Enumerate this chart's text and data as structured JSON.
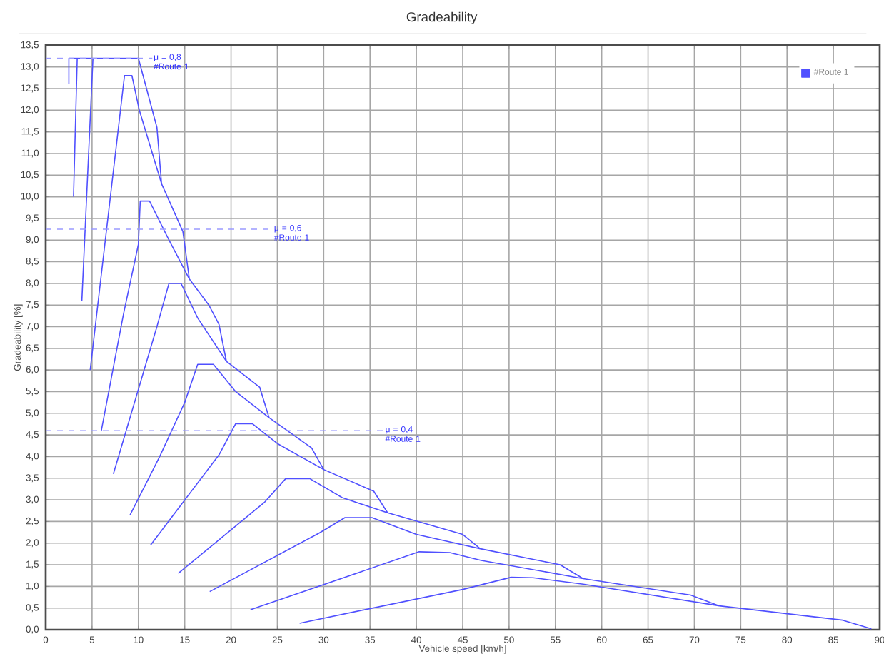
{
  "chart_data": {
    "type": "line",
    "title": "Gradeability",
    "xlabel": "Vehicle speed [km/h]",
    "ylabel": "Gradeability [%]",
    "xlim": [
      0,
      90
    ],
    "ylim": [
      0,
      13.5
    ],
    "xticks": [
      0,
      5,
      10,
      15,
      20,
      25,
      30,
      35,
      40,
      45,
      50,
      55,
      60,
      65,
      70,
      75,
      80,
      85,
      90
    ],
    "yticks": [
      {
        "value": 0,
        "label": "0,0"
      },
      {
        "value": 0.5,
        "label": "0,5"
      },
      {
        "value": 1,
        "label": "1,0"
      },
      {
        "value": 1.5,
        "label": "1,5"
      },
      {
        "value": 2,
        "label": "2,0"
      },
      {
        "value": 2.5,
        "label": "2,5"
      },
      {
        "value": 3,
        "label": "3,0"
      },
      {
        "value": 3.5,
        "label": "3,5"
      },
      {
        "value": 4,
        "label": "4,0"
      },
      {
        "value": 4.5,
        "label": "4,5"
      },
      {
        "value": 5,
        "label": "5,0"
      },
      {
        "value": 5.5,
        "label": "5,5"
      },
      {
        "value": 6,
        "label": "6,0"
      },
      {
        "value": 6.5,
        "label": "6,5"
      },
      {
        "value": 7,
        "label": "7,0"
      },
      {
        "value": 7.5,
        "label": "7,5"
      },
      {
        "value": 8,
        "label": "8,0"
      },
      {
        "value": 8.5,
        "label": "8,5"
      },
      {
        "value": 9,
        "label": "9,0"
      },
      {
        "value": 9.5,
        "label": "9,5"
      },
      {
        "value": 10,
        "label": "10,0"
      },
      {
        "value": 10.5,
        "label": "10,5"
      },
      {
        "value": 11,
        "label": "11,0"
      },
      {
        "value": 11.5,
        "label": "11,5"
      },
      {
        "value": 12,
        "label": "12,0"
      },
      {
        "value": 12.5,
        "label": "12,5"
      },
      {
        "value": 13,
        "label": "13,0"
      },
      {
        "value": 13.5,
        "label": "13,5"
      }
    ],
    "grid": true,
    "legend": "top right",
    "marker": "none",
    "line_style": "solid",
    "series": [
      {
        "name": "#Route 1",
        "color": "#5050ff",
        "x": [
          2.5,
          2.5,
          10,
          null,
          3.0,
          3.4,
          10,
          null,
          3.9,
          5.1,
          10,
          12.0,
          12.5,
          null,
          4.8,
          8.5,
          9.3,
          10.1,
          12.5,
          14.8,
          15.5,
          null,
          6.0,
          8.4,
          10.0,
          10.2,
          11.2,
          13.3,
          15.5,
          17.6,
          18.7,
          19.5,
          null,
          7.3,
          12.0,
          13.3,
          14.6,
          16.4,
          19.5,
          23.1,
          24.1,
          null,
          9.1,
          12.3,
          15.0,
          16.4,
          18.1,
          20.5,
          24.1,
          28.7,
          30.0,
          null,
          11.3,
          18.7,
          20.5,
          22.3,
          25.0,
          30.0,
          35.4,
          36.9,
          null,
          14.3,
          23.6,
          25.9,
          28.5,
          32.0,
          36.9,
          45.0,
          46.9,
          null,
          17.7,
          29.5,
          32.3,
          35.2,
          40.0,
          46.9,
          55.5,
          58.0,
          null,
          22.1,
          40.3,
          43.6,
          47.0,
          58.0,
          69.6,
          72.7,
          null,
          27.4,
          45.0,
          50.2,
          52.6,
          58.0,
          72.7,
          86.0,
          89.1
        ],
        "values": [
          12.6,
          13.2,
          13.2,
          null,
          10.0,
          13.2,
          13.2,
          null,
          7.6,
          13.2,
          13.2,
          11.6,
          10.3,
          null,
          6.0,
          12.8,
          12.8,
          12.0,
          10.3,
          9.2,
          8.1,
          null,
          4.6,
          7.3,
          8.9,
          9.9,
          9.9,
          9.0,
          8.1,
          7.5,
          7.05,
          6.2,
          null,
          3.6,
          7.0,
          8.0,
          8.0,
          7.2,
          6.2,
          5.6,
          4.9,
          null,
          2.65,
          4.0,
          5.25,
          6.13,
          6.13,
          5.5,
          4.9,
          4.2,
          3.7,
          null,
          1.95,
          4.04,
          4.76,
          4.76,
          4.3,
          3.7,
          3.2,
          2.7,
          null,
          1.3,
          2.94,
          3.49,
          3.49,
          3.05,
          2.7,
          2.2,
          1.87,
          null,
          0.88,
          2.23,
          2.59,
          2.59,
          2.2,
          1.87,
          1.5,
          1.18,
          null,
          0.46,
          1.8,
          1.78,
          1.6,
          1.18,
          0.8,
          0.55,
          null,
          0.15,
          0.93,
          1.21,
          1.2,
          1.05,
          0.55,
          0.22,
          0.02
        ]
      }
    ],
    "ref_lines": [
      {
        "axis": "y",
        "value": 13.2,
        "color": "#9a9aff",
        "line_style": "dashed"
      },
      {
        "axis": "y",
        "value": 9.25,
        "color": "#9a9aff",
        "line_style": "dashed"
      },
      {
        "axis": "y",
        "value": 4.6,
        "color": "#9a9aff",
        "line_style": "dashed"
      }
    ],
    "annotations": [
      {
        "text": "μ = 0,8 #Route 1",
        "x": 11.5,
        "y": 13.2
      },
      {
        "text": "μ = 0,6 #Route 1",
        "x": 24.5,
        "y": 9.25
      },
      {
        "text": "μ = 0,4 #Route 1",
        "x": 36.5,
        "y": 4.6
      }
    ]
  }
}
